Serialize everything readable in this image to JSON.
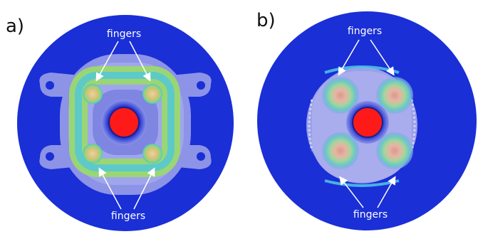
{
  "figure": {
    "panels": [
      {
        "label": "a)",
        "top_annotation": "fingers",
        "bottom_annotation": "fingers"
      },
      {
        "label": "b)",
        "top_annotation": "fingers",
        "bottom_annotation": "fingers"
      }
    ],
    "colors": {
      "background_blue": "#1a2fd6",
      "outer_lavender": "#8d93e6",
      "inner_lavender": "#a9aded",
      "hot_center": "#ff1a1a",
      "ring_cyan": "#3fc7e8",
      "ring_green": "#7fd67a",
      "finger_tan": "#d4c07a",
      "finger_pink": "#e8a59a"
    }
  }
}
